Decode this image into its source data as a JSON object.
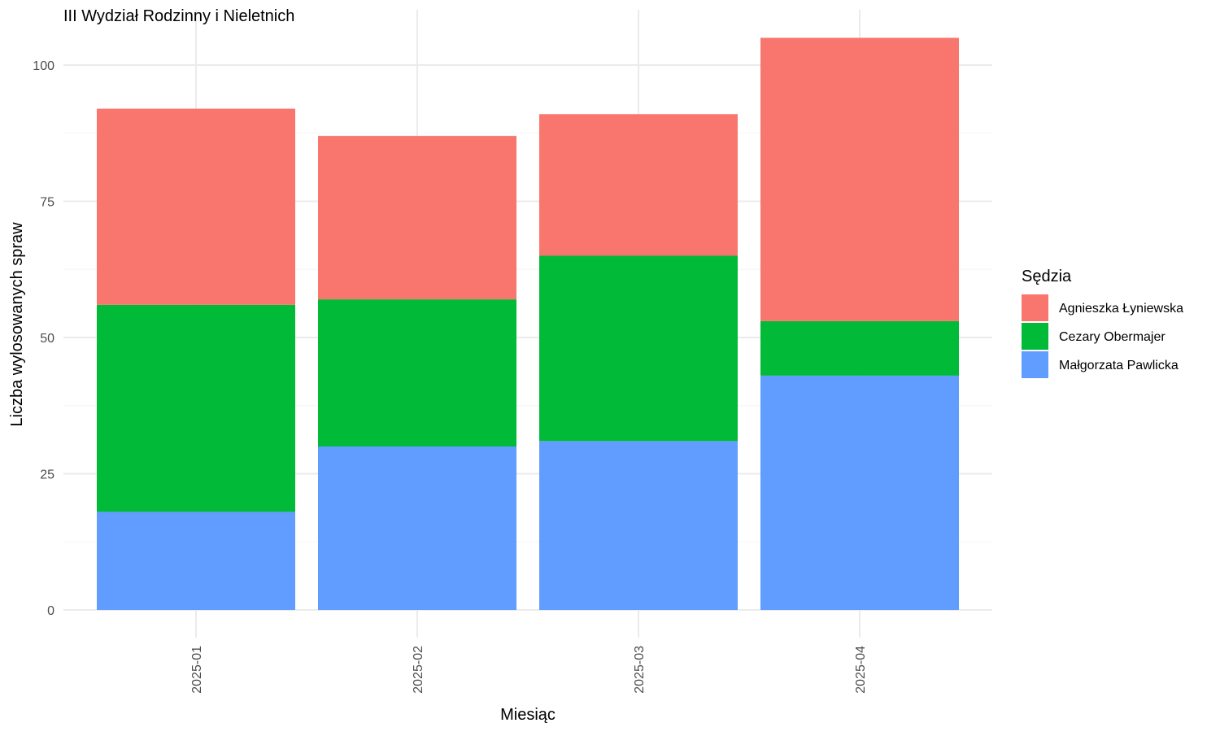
{
  "chart_data": {
    "type": "bar",
    "stacked": true,
    "title": "III Wydział Rodzinny i Nieletnich",
    "xlabel": "Miesiąc",
    "ylabel": "Liczba wylosowanych spraw",
    "categories": [
      "2025-01",
      "2025-02",
      "2025-03",
      "2025-04"
    ],
    "ylim": [
      0,
      110
    ],
    "yticks": [
      0,
      25,
      50,
      75,
      100
    ],
    "grid": true,
    "legend": {
      "title": "Sędzia",
      "position": "right"
    },
    "series": [
      {
        "name": "Małgorzata Pawlicka",
        "color": "#619CFF",
        "values": [
          18,
          30,
          31,
          43
        ]
      },
      {
        "name": "Cezary Obermajer",
        "color": "#00BA38",
        "values": [
          38,
          27,
          34,
          10
        ]
      },
      {
        "name": "Agnieszka Łyniewska",
        "color": "#F8766D",
        "values": [
          36,
          30,
          26,
          52
        ]
      }
    ],
    "legend_order": [
      "Agnieszka Łyniewska",
      "Cezary Obermajer",
      "Małgorzata Pawlicka"
    ]
  }
}
